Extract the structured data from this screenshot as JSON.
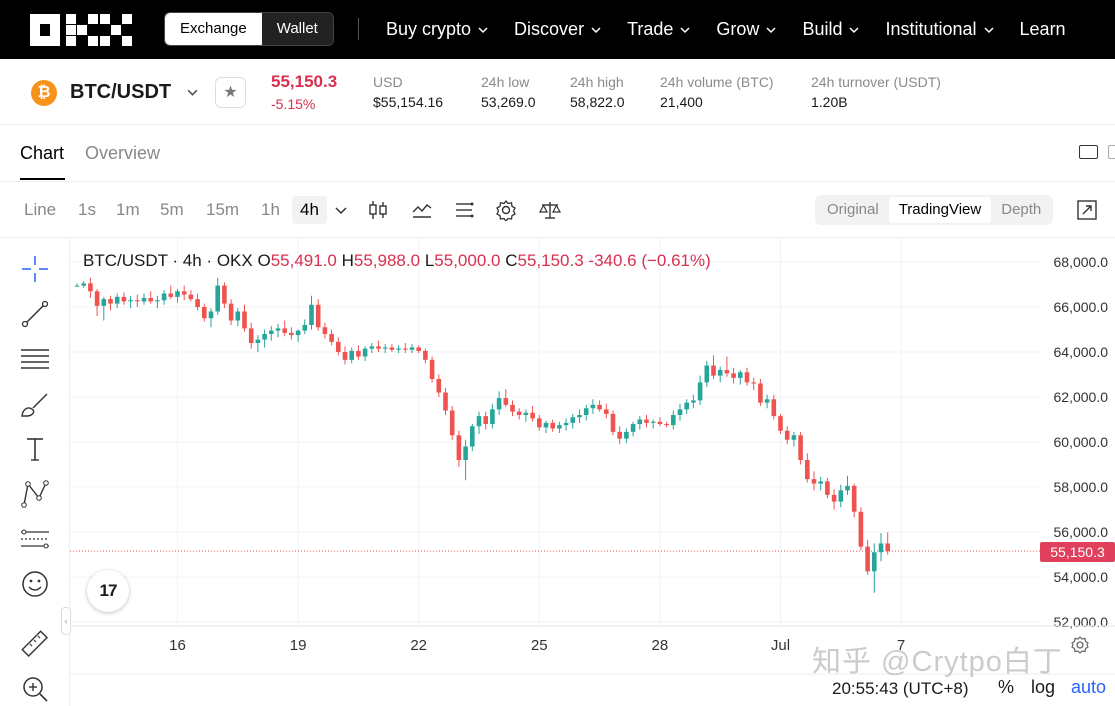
{
  "brand": {
    "logo": "OKX"
  },
  "topnav": {
    "switch": {
      "exchange": "Exchange",
      "wallet": "Wallet"
    },
    "items": [
      {
        "label": "Buy crypto",
        "has_menu": true
      },
      {
        "label": "Discover",
        "has_menu": true
      },
      {
        "label": "Trade",
        "has_menu": true
      },
      {
        "label": "Grow",
        "has_menu": true
      },
      {
        "label": "Build",
        "has_menu": true
      },
      {
        "label": "Institutional",
        "has_menu": true
      },
      {
        "label": "Learn",
        "has_menu": false
      }
    ]
  },
  "ticker": {
    "coin_icon": "bitcoin-icon",
    "coin_symbol": "₿",
    "pair": "BTC/USDT",
    "price": "55,150.3",
    "change_pct": "-5.15%",
    "stats": [
      {
        "label": "USD",
        "value": "$55,154.16"
      },
      {
        "label": "24h low",
        "value": "53,269.0"
      },
      {
        "label": "24h high",
        "value": "58,822.0"
      },
      {
        "label": "24h volume (BTC)",
        "value": "21,400"
      },
      {
        "label": "24h turnover (USDT)",
        "value": "1.20B"
      }
    ]
  },
  "tabs": [
    {
      "label": "Chart",
      "active": true
    },
    {
      "label": "Overview",
      "active": false
    }
  ],
  "toolbar": {
    "timeframes": [
      "Line",
      "1s",
      "1m",
      "5m",
      "15m",
      "1h",
      "4h"
    ],
    "selected_timeframe": "4h",
    "views": [
      "Original",
      "TradingView",
      "Depth"
    ],
    "selected_view": "TradingView"
  },
  "chart_legend": {
    "title": "BTC/USDT · 4h · OKX",
    "o_key": "O",
    "o_val": "55,491.0",
    "h_key": "H",
    "h_val": "55,988.0",
    "l_key": "L",
    "l_val": "55,000.0",
    "c_key": "C",
    "c_val": "55,150.3",
    "chg": "-340.6 (−0.61%)"
  },
  "chart_data": {
    "type": "candlestick",
    "y_ticks": [
      "68,000.0",
      "66,000.0",
      "64,000.0",
      "62,000.0",
      "60,000.0",
      "58,000.0",
      "56,000.0",
      "54,000.0",
      "52,000.0"
    ],
    "y_tick_values": [
      68000,
      66000,
      64000,
      62000,
      60000,
      58000,
      56000,
      54000,
      52000
    ],
    "x_ticks": [
      "16",
      "19",
      "22",
      "25",
      "28",
      "Jul",
      "7"
    ],
    "x_tick_index": [
      15,
      33,
      51,
      69,
      87,
      105,
      123
    ],
    "last_price": 55150.3,
    "last_price_label": "55,150.3",
    "up_color": "#26a69a",
    "down_color": "#ef5350",
    "candles": [
      [
        66950,
        67050,
        66900,
        66950
      ],
      [
        66950,
        67150,
        66850,
        67050
      ],
      [
        67050,
        67300,
        66400,
        66700
      ],
      [
        66700,
        66800,
        65600,
        66050
      ],
      [
        66050,
        66450,
        65400,
        66350
      ],
      [
        66350,
        66500,
        65850,
        66150
      ],
      [
        66150,
        66600,
        65950,
        66450
      ],
      [
        66450,
        66650,
        66100,
        66250
      ],
      [
        66250,
        66500,
        65950,
        66300
      ],
      [
        66300,
        66550,
        66000,
        66250
      ],
      [
        66250,
        66600,
        66100,
        66400
      ],
      [
        66400,
        66700,
        66150,
        66250
      ],
      [
        66250,
        66500,
        65950,
        66300
      ],
      [
        66300,
        66750,
        66100,
        66600
      ],
      [
        66600,
        66950,
        66350,
        66450
      ],
      [
        66450,
        66800,
        66200,
        66700
      ],
      [
        66700,
        66950,
        66300,
        66550
      ],
      [
        66550,
        66750,
        66250,
        66350
      ],
      [
        66350,
        66600,
        65850,
        66000
      ],
      [
        66000,
        66150,
        65350,
        65500
      ],
      [
        65500,
        65950,
        65100,
        65800
      ],
      [
        65800,
        67300,
        65650,
        66950
      ],
      [
        66950,
        67100,
        65950,
        66150
      ],
      [
        66150,
        66350,
        65200,
        65400
      ],
      [
        65400,
        65950,
        65150,
        65800
      ],
      [
        65800,
        66100,
        64900,
        65050
      ],
      [
        65050,
        65300,
        64150,
        64400
      ],
      [
        64400,
        64750,
        64000,
        64550
      ],
      [
        64550,
        65000,
        64200,
        64800
      ],
      [
        64800,
        65150,
        64500,
        64950
      ],
      [
        64950,
        65250,
        64650,
        65050
      ],
      [
        65050,
        65400,
        64700,
        64850
      ],
      [
        64850,
        65100,
        64550,
        64750
      ],
      [
        64750,
        65000,
        64450,
        64950
      ],
      [
        64950,
        65450,
        64800,
        65200
      ],
      [
        65200,
        66500,
        65000,
        66100
      ],
      [
        66100,
        66350,
        64950,
        65100
      ],
      [
        65100,
        65300,
        64600,
        64800
      ],
      [
        64800,
        65000,
        64300,
        64450
      ],
      [
        64450,
        64650,
        63850,
        64000
      ],
      [
        64000,
        64250,
        63450,
        63650
      ],
      [
        63650,
        64200,
        63500,
        64050
      ],
      [
        64050,
        64300,
        63650,
        63800
      ],
      [
        63800,
        64250,
        63600,
        64150
      ],
      [
        64150,
        64400,
        63950,
        64250
      ],
      [
        64250,
        64500,
        64000,
        64150
      ],
      [
        64150,
        64350,
        63950,
        64200
      ],
      [
        64200,
        64350,
        64000,
        64100
      ],
      [
        64100,
        64300,
        63950,
        64150
      ],
      [
        64150,
        64400,
        63950,
        64100
      ],
      [
        64100,
        64350,
        63950,
        64200
      ],
      [
        64200,
        64300,
        63950,
        64050
      ],
      [
        64050,
        64150,
        63500,
        63650
      ],
      [
        63650,
        63800,
        62650,
        62800
      ],
      [
        62800,
        63000,
        62000,
        62200
      ],
      [
        62200,
        62400,
        61200,
        61400
      ],
      [
        61400,
        61600,
        60100,
        60300
      ],
      [
        60300,
        60500,
        58900,
        59200
      ],
      [
        59200,
        60100,
        58300,
        59800
      ],
      [
        59800,
        60800,
        59600,
        60700
      ],
      [
        60700,
        61350,
        60350,
        61150
      ],
      [
        61150,
        61350,
        60550,
        60800
      ],
      [
        60800,
        61700,
        60600,
        61450
      ],
      [
        61450,
        62250,
        61200,
        61950
      ],
      [
        61950,
        62350,
        61550,
        61650
      ],
      [
        61650,
        61850,
        61150,
        61350
      ],
      [
        61350,
        61500,
        61000,
        61200
      ],
      [
        61200,
        61450,
        60900,
        61300
      ],
      [
        61300,
        61600,
        60900,
        61050
      ],
      [
        61050,
        61200,
        60500,
        60650
      ],
      [
        60650,
        60950,
        60400,
        60850
      ],
      [
        60850,
        61000,
        60450,
        60600
      ],
      [
        60600,
        60900,
        60400,
        60750
      ],
      [
        60750,
        61050,
        60500,
        60850
      ],
      [
        60850,
        61250,
        60600,
        61100
      ],
      [
        61100,
        61450,
        60850,
        61200
      ],
      [
        61200,
        61650,
        60950,
        61500
      ],
      [
        61500,
        61900,
        61250,
        61650
      ],
      [
        61650,
        61850,
        61350,
        61450
      ],
      [
        61450,
        61700,
        61050,
        61250
      ],
      [
        61250,
        61400,
        60300,
        60450
      ],
      [
        60450,
        60700,
        59900,
        60150
      ],
      [
        60150,
        60600,
        59950,
        60450
      ],
      [
        60450,
        60900,
        60250,
        60800
      ],
      [
        60800,
        61150,
        60550,
        61000
      ],
      [
        61000,
        61200,
        60650,
        60850
      ],
      [
        60850,
        61000,
        60600,
        60900
      ],
      [
        60900,
        61100,
        60700,
        60800
      ],
      [
        60800,
        60900,
        60650,
        60750
      ],
      [
        60750,
        61400,
        60550,
        61200
      ],
      [
        61200,
        61700,
        60950,
        61450
      ],
      [
        61450,
        61900,
        61250,
        61750
      ],
      [
        61750,
        62100,
        61500,
        61850
      ],
      [
        61850,
        62950,
        61650,
        62650
      ],
      [
        62650,
        63600,
        62450,
        63400
      ],
      [
        63400,
        63850,
        62800,
        62950
      ],
      [
        62950,
        63350,
        62650,
        63200
      ],
      [
        63200,
        63800,
        62900,
        63050
      ],
      [
        63050,
        63300,
        62600,
        62850
      ],
      [
        62850,
        63200,
        62550,
        63100
      ],
      [
        63100,
        63300,
        62500,
        62650
      ],
      [
        62650,
        62850,
        62300,
        62600
      ],
      [
        62600,
        62800,
        61600,
        61750
      ],
      [
        61750,
        62100,
        61500,
        61900
      ],
      [
        61900,
        62100,
        61000,
        61150
      ],
      [
        61150,
        61250,
        60350,
        60500
      ],
      [
        60500,
        60700,
        59900,
        60100
      ],
      [
        60100,
        60450,
        59800,
        60300
      ],
      [
        60300,
        60450,
        59000,
        59200
      ],
      [
        59200,
        59500,
        58200,
        58350
      ],
      [
        58350,
        58700,
        57850,
        58150
      ],
      [
        58150,
        58450,
        57850,
        58250
      ],
      [
        58250,
        58400,
        57500,
        57650
      ],
      [
        57650,
        57900,
        57000,
        57350
      ],
      [
        57350,
        58100,
        57100,
        57850
      ],
      [
        57850,
        58500,
        57650,
        58050
      ],
      [
        58050,
        58150,
        56650,
        56900
      ],
      [
        56900,
        57100,
        55200,
        55350
      ],
      [
        55350,
        55650,
        54100,
        54250
      ],
      [
        54250,
        55500,
        53300,
        55100
      ],
      [
        55100,
        55950,
        54700,
        55491
      ],
      [
        55491,
        55988,
        55000,
        55150.3
      ]
    ]
  },
  "status_bar": {
    "clock": "20:55:43 (UTC+8)",
    "pct": "%",
    "log": "log",
    "auto": "auto"
  },
  "watermark": "知乎 @Crytpo白丁",
  "tv_logo": "17"
}
